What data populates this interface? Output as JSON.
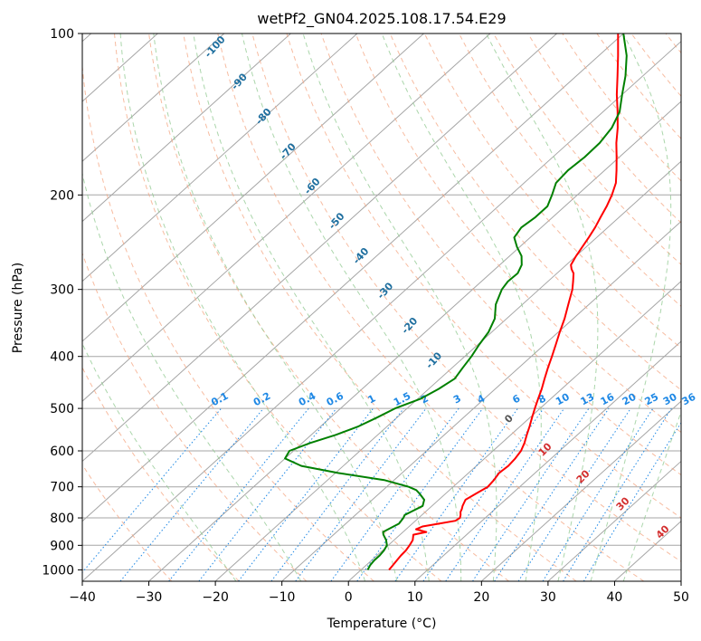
{
  "chart_data": {
    "type": "line",
    "title": "wetPf2_GN04.2025.108.17.54.E29",
    "xlabel": "Temperature (°C)",
    "ylabel": "Pressure (hPa)",
    "xlim": [
      -40,
      50
    ],
    "ylim": [
      1050,
      100
    ],
    "y_scale": "log",
    "skew": true,
    "grid": true,
    "x_ticks": [
      -40,
      -30,
      -20,
      -10,
      0,
      10,
      20,
      30,
      40,
      50
    ],
    "y_ticks": [
      100,
      200,
      300,
      400,
      500,
      600,
      700,
      800,
      900,
      1000
    ],
    "series": [
      {
        "role": "temperature",
        "color": "#ff0000",
        "points": [
          [
            1000,
            4.2
          ],
          [
            980,
            4.0
          ],
          [
            960,
            3.8
          ],
          [
            940,
            3.6
          ],
          [
            920,
            3.5
          ],
          [
            900,
            3.2
          ],
          [
            880,
            2.8
          ],
          [
            860,
            2.0
          ],
          [
            850,
            3.5
          ],
          [
            840,
            1.5
          ],
          [
            830,
            2.0
          ],
          [
            820,
            4.0
          ],
          [
            810,
            6.0
          ],
          [
            800,
            6.2
          ],
          [
            790,
            5.8
          ],
          [
            780,
            5.3
          ],
          [
            770,
            5.0
          ],
          [
            760,
            4.6
          ],
          [
            740,
            4.0
          ],
          [
            720,
            4.6
          ],
          [
            700,
            5.2
          ],
          [
            680,
            5.0
          ],
          [
            660,
            4.6
          ],
          [
            640,
            4.8
          ],
          [
            620,
            4.6
          ],
          [
            600,
            4.2
          ],
          [
            580,
            3.4
          ],
          [
            560,
            2.4
          ],
          [
            540,
            1.4
          ],
          [
            520,
            0.3
          ],
          [
            500,
            -0.8
          ],
          [
            480,
            -1.9
          ],
          [
            460,
            -3.0
          ],
          [
            440,
            -4.3
          ],
          [
            420,
            -5.6
          ],
          [
            400,
            -6.9
          ],
          [
            380,
            -8.3
          ],
          [
            360,
            -9.8
          ],
          [
            340,
            -11.3
          ],
          [
            320,
            -13.1
          ],
          [
            300,
            -15.0
          ],
          [
            290,
            -16.2
          ],
          [
            280,
            -17.5
          ],
          [
            275,
            -18.5
          ],
          [
            270,
            -19.3
          ],
          [
            260,
            -20.0
          ],
          [
            250,
            -20.6
          ],
          [
            240,
            -21.2
          ],
          [
            230,
            -21.9
          ],
          [
            220,
            -22.8
          ],
          [
            210,
            -23.7
          ],
          [
            200,
            -24.8
          ],
          [
            190,
            -26.2
          ],
          [
            180,
            -28.2
          ],
          [
            170,
            -30.4
          ],
          [
            160,
            -32.8
          ],
          [
            150,
            -35.1
          ],
          [
            140,
            -37.8
          ],
          [
            130,
            -40.8
          ],
          [
            120,
            -43.8
          ],
          [
            110,
            -47.1
          ],
          [
            100,
            -50.8
          ]
        ]
      },
      {
        "role": "dewpoint",
        "color": "#008000",
        "points": [
          [
            1000,
            1.0
          ],
          [
            980,
            0.6
          ],
          [
            960,
            0.4
          ],
          [
            940,
            0.4
          ],
          [
            920,
            0.2
          ],
          [
            900,
            -0.2
          ],
          [
            880,
            -1.2
          ],
          [
            860,
            -2.5
          ],
          [
            850,
            -3.0
          ],
          [
            840,
            -2.7
          ],
          [
            820,
            -2.0
          ],
          [
            800,
            -2.3
          ],
          [
            790,
            -2.6
          ],
          [
            780,
            -2.2
          ],
          [
            760,
            -1.4
          ],
          [
            740,
            -2.2
          ],
          [
            720,
            -4.0
          ],
          [
            710,
            -5.0
          ],
          [
            700,
            -6.7
          ],
          [
            680,
            -11.5
          ],
          [
            660,
            -19.5
          ],
          [
            640,
            -26.3
          ],
          [
            620,
            -30.0
          ],
          [
            600,
            -30.6
          ],
          [
            580,
            -28.8
          ],
          [
            560,
            -26.3
          ],
          [
            540,
            -24.3
          ],
          [
            520,
            -23.0
          ],
          [
            500,
            -21.8
          ],
          [
            480,
            -19.6
          ],
          [
            460,
            -18.5
          ],
          [
            440,
            -17.8
          ],
          [
            420,
            -18.4
          ],
          [
            400,
            -19.0
          ],
          [
            380,
            -19.8
          ],
          [
            360,
            -20.5
          ],
          [
            340,
            -21.8
          ],
          [
            320,
            -24.0
          ],
          [
            300,
            -25.6
          ],
          [
            290,
            -26.0
          ],
          [
            280,
            -25.9
          ],
          [
            270,
            -26.7
          ],
          [
            260,
            -28.2
          ],
          [
            250,
            -30.4
          ],
          [
            240,
            -32.4
          ],
          [
            230,
            -33.0
          ],
          [
            220,
            -32.6
          ],
          [
            210,
            -32.6
          ],
          [
            200,
            -33.8
          ],
          [
            190,
            -35.2
          ],
          [
            180,
            -35.5
          ],
          [
            170,
            -35.2
          ],
          [
            160,
            -35.3
          ],
          [
            150,
            -36.0
          ],
          [
            140,
            -37.5
          ],
          [
            130,
            -40.0
          ],
          [
            120,
            -42.6
          ],
          [
            110,
            -45.8
          ],
          [
            100,
            -50.0
          ]
        ]
      }
    ],
    "dry_adiabat_labels": [
      "-100",
      "-90",
      "-80",
      "-70",
      "-60",
      "-50",
      "-40",
      "-30",
      "-20",
      "-10"
    ],
    "moist_adiabat_labels": [
      "0",
      "10",
      "20",
      "30",
      "40"
    ],
    "mixing_ratio_labels": [
      "0.1",
      "0.2",
      "0.4",
      "0.6",
      "1",
      "1.5",
      "2",
      "3",
      "4",
      "6",
      "8",
      "10",
      "13",
      "16",
      "20",
      "25",
      "30",
      "36"
    ],
    "colors": {
      "isotherm": "#a6a6a6",
      "isobar": "#a6a6a6",
      "dry_adiabat": "#f4a582",
      "moist_adiabat": "#8fc88f",
      "mixing_ratio": "#1e88e5",
      "dry_label": "#1f6f9f",
      "moist_label": "#d32f2f"
    }
  }
}
